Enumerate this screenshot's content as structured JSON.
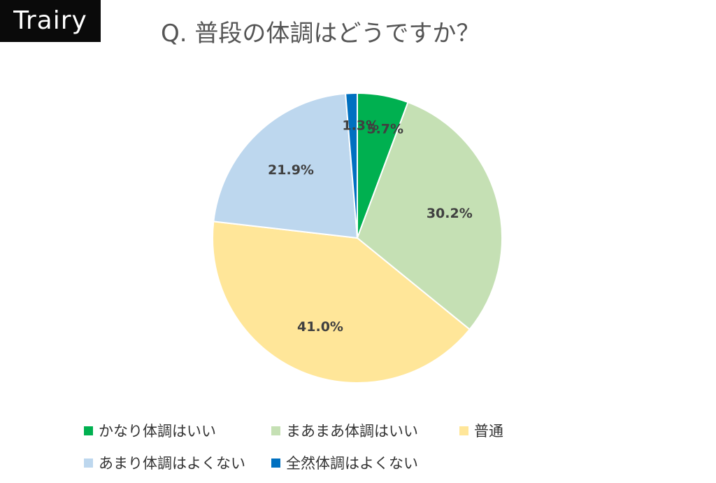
{
  "brand": {
    "logo_text": "Trairy"
  },
  "chart_data": {
    "type": "pie",
    "title": "Q. 普段の体調はどうですか？",
    "start": "12 o'clock",
    "direction": "clockwise",
    "legend_position": "bottom",
    "categories": [
      "かなり体調はいい",
      "まあまあ体調はいい",
      "普通",
      "あまり体調はよくない",
      "全然体調はよくない"
    ],
    "values": [
      5.7,
      30.2,
      41.0,
      21.9,
      1.3
    ],
    "labels": [
      "5.7%",
      "30.2%",
      "41.0%",
      "21.9%",
      "1.3%"
    ],
    "colors": [
      "#00b050",
      "#c5e0b4",
      "#ffe699",
      "#bdd7ee",
      "#0070c0"
    ]
  }
}
